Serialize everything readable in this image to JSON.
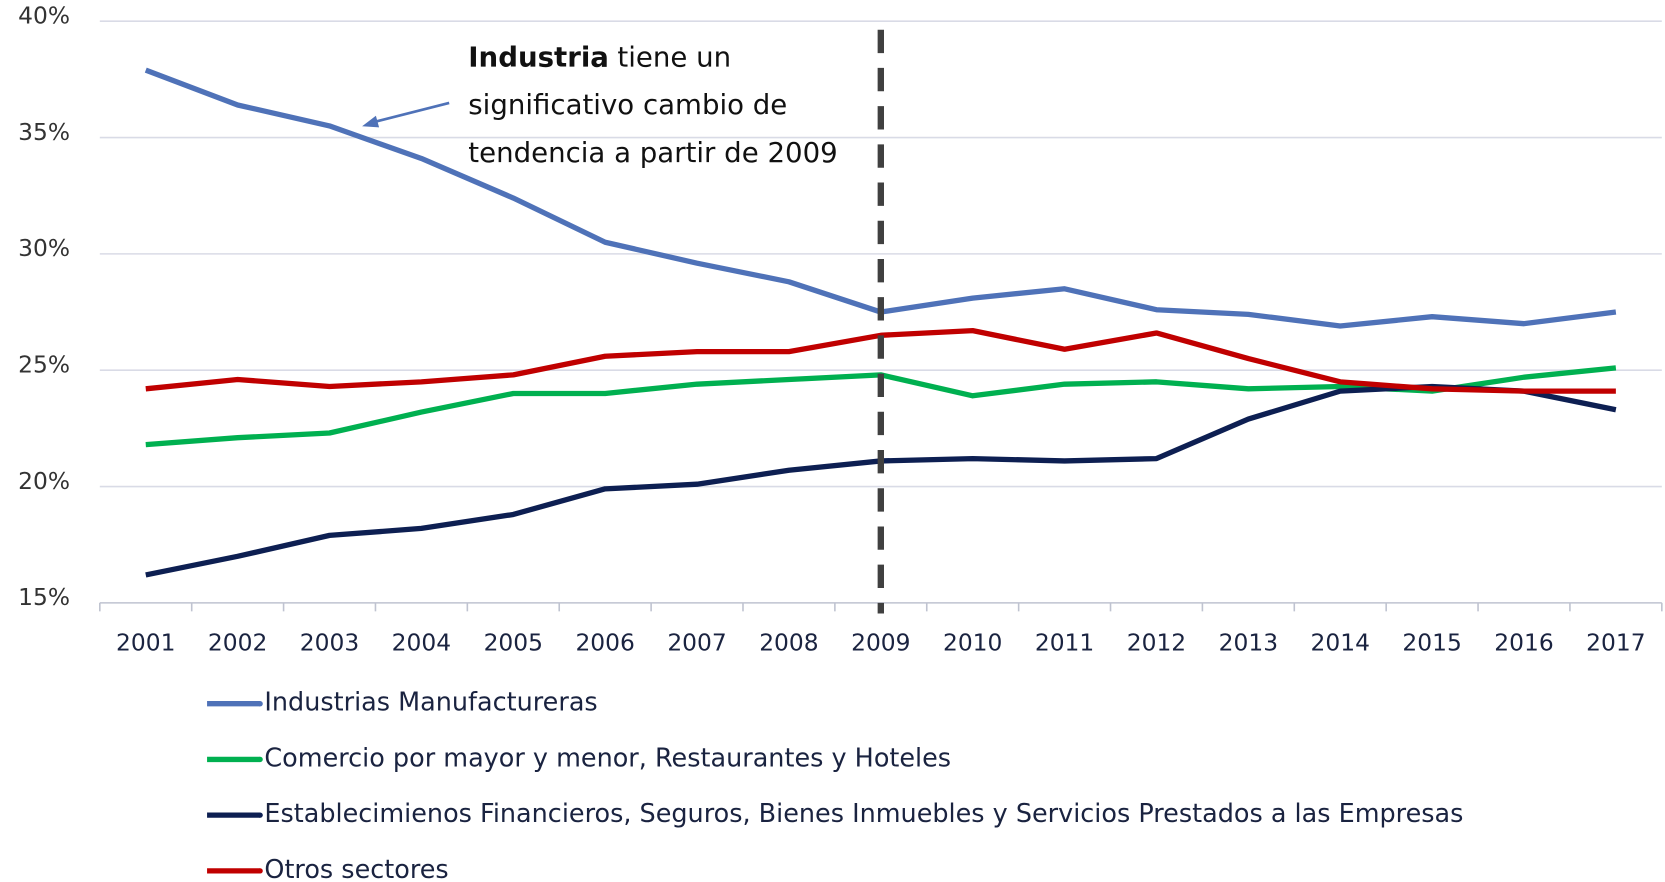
{
  "chart_data": {
    "type": "line",
    "categories": [
      "2001",
      "2002",
      "2003",
      "2004",
      "2005",
      "2006",
      "2007",
      "2008",
      "2009",
      "2010",
      "2011",
      "2012",
      "2013",
      "2014",
      "2015",
      "2016",
      "2017"
    ],
    "series": [
      {
        "name": "Industrias Manufactureras",
        "color": "#4f72b8",
        "values": [
          37.9,
          36.4,
          35.5,
          34.1,
          32.4,
          30.5,
          29.6,
          28.8,
          27.5,
          28.1,
          28.5,
          27.6,
          27.4,
          26.9,
          27.3,
          27.0,
          27.5
        ]
      },
      {
        "name": "Comercio por mayor y menor, Restaurantes y Hoteles",
        "color": "#00b050",
        "values": [
          21.8,
          22.1,
          22.3,
          23.2,
          24.0,
          24.0,
          24.4,
          24.6,
          24.8,
          23.9,
          24.4,
          24.5,
          24.2,
          24.3,
          24.1,
          24.7,
          25.1
        ]
      },
      {
        "name": "Establecimienos Financieros, Seguros, Bienes Inmuebles y Servicios Prestados a las Empresas",
        "color": "#0d1f52",
        "values": [
          16.2,
          17.0,
          17.9,
          18.2,
          18.8,
          19.9,
          20.1,
          20.7,
          21.1,
          21.2,
          21.1,
          21.2,
          22.9,
          24.1,
          24.3,
          24.1,
          23.3
        ]
      },
      {
        "name": "Otros sectores",
        "color": "#c00000",
        "values": [
          24.2,
          24.6,
          24.3,
          24.5,
          24.8,
          25.6,
          25.8,
          25.8,
          26.5,
          26.7,
          25.9,
          26.6,
          25.5,
          24.5,
          24.2,
          24.1,
          24.1
        ]
      }
    ],
    "ylim": [
      15,
      40
    ],
    "yticks": [
      {
        "value": 15,
        "label": "15%"
      },
      {
        "value": 20,
        "label": "20%"
      },
      {
        "value": 25,
        "label": "25%"
      },
      {
        "value": 30,
        "label": "30%"
      },
      {
        "value": 35,
        "label": "35%"
      },
      {
        "value": 40,
        "label": "40%"
      }
    ],
    "grid": true,
    "legend": "bottom",
    "marker_category": "2009",
    "annotation": {
      "bold": "Industria",
      "lines": [
        "tiene un",
        "significativo cambio de",
        "tendencia a partir de 2009"
      ]
    }
  }
}
